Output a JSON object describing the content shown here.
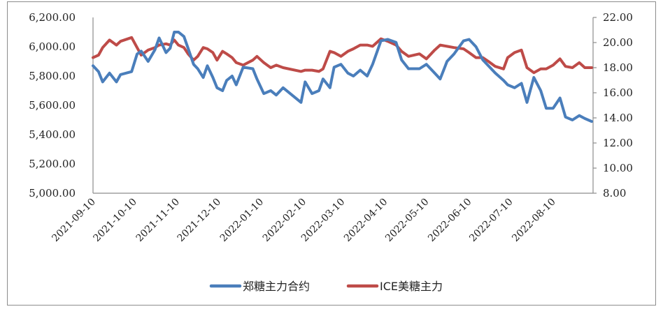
{
  "chart_data": {
    "type": "line",
    "title": "",
    "xlabel": "",
    "ylabel": "",
    "y2label": "",
    "legend_position": "bottom",
    "grid": false,
    "x_ticks": [
      "2021-09-10",
      "2021-10-10",
      "2021-11-10",
      "2021-12-10",
      "2022-01-10",
      "2022-02-10",
      "2022-03-10",
      "2022-04-10",
      "2022-05-10",
      "2022-06-10",
      "2022-07-10",
      "2022-08-10"
    ],
    "y_left": {
      "ylim": [
        5000,
        6200
      ],
      "ticks": [
        "5,000.00",
        "5,200.00",
        "5,400.00",
        "5,600.00",
        "5,800.00",
        "6,000.00",
        "6,200.00"
      ]
    },
    "y_right": {
      "ylim": [
        8,
        22
      ],
      "ticks": [
        "8.00",
        "10.00",
        "12.00",
        "14.00",
        "16.00",
        "18.00",
        "20.00",
        "22.00"
      ]
    },
    "series": [
      {
        "name": "郑糖主力合约",
        "axis": "left",
        "color": "#4a7ebb",
        "x": [
          "2021-09-10",
          "2021-09-14",
          "2021-09-17",
          "2021-09-22",
          "2021-09-27",
          "2021-09-30",
          "2021-10-08",
          "2021-10-12",
          "2021-10-15",
          "2021-10-20",
          "2021-10-25",
          "2021-10-28",
          "2021-11-02",
          "2021-11-05",
          "2021-11-08",
          "2021-11-11",
          "2021-11-15",
          "2021-11-18",
          "2021-11-22",
          "2021-11-25",
          "2021-11-29",
          "2021-12-02",
          "2021-12-06",
          "2021-12-09",
          "2021-12-13",
          "2021-12-16",
          "2021-12-20",
          "2021-12-23",
          "2021-12-28",
          "2022-01-04",
          "2022-01-07",
          "2022-01-12",
          "2022-01-17",
          "2022-01-21",
          "2022-01-26",
          "2022-02-08",
          "2022-02-11",
          "2022-02-16",
          "2022-02-21",
          "2022-02-24",
          "2022-03-01",
          "2022-03-04",
          "2022-03-09",
          "2022-03-14",
          "2022-03-18",
          "2022-03-23",
          "2022-03-28",
          "2022-04-01",
          "2022-04-07",
          "2022-04-12",
          "2022-04-18",
          "2022-04-22",
          "2022-04-27",
          "2022-05-05",
          "2022-05-10",
          "2022-05-16",
          "2022-05-20",
          "2022-05-25",
          "2022-05-30",
          "2022-06-06",
          "2022-06-10",
          "2022-06-15",
          "2022-06-20",
          "2022-06-24",
          "2022-06-29",
          "2022-07-05",
          "2022-07-08",
          "2022-07-13",
          "2022-07-18",
          "2022-07-22",
          "2022-07-27",
          "2022-08-01",
          "2022-08-05",
          "2022-08-10",
          "2022-08-15",
          "2022-08-19",
          "2022-08-24",
          "2022-08-29",
          "2022-09-02",
          "2022-09-07"
        ],
        "values": [
          5870,
          5830,
          5760,
          5820,
          5760,
          5810,
          5830,
          5950,
          5970,
          5900,
          5980,
          6060,
          5960,
          5990,
          6100,
          6100,
          6070,
          5990,
          5880,
          5850,
          5790,
          5870,
          5790,
          5720,
          5700,
          5770,
          5800,
          5740,
          5860,
          5850,
          5780,
          5680,
          5700,
          5670,
          5720,
          5620,
          5760,
          5680,
          5700,
          5780,
          5720,
          5860,
          5880,
          5820,
          5800,
          5840,
          5800,
          5880,
          6040,
          6050,
          6030,
          5910,
          5850,
          5850,
          5880,
          5820,
          5780,
          5900,
          5950,
          6040,
          6050,
          6000,
          5910,
          5870,
          5820,
          5770,
          5740,
          5720,
          5750,
          5620,
          5790,
          5700,
          5580,
          5580,
          5650,
          5520,
          5500,
          5530,
          5510,
          5490
        ],
        "values_note": "approximate readings from pixel positions"
      },
      {
        "name": "ICE美糖主力",
        "axis": "right",
        "color": "#be4b48",
        "x": [
          "2021-09-10",
          "2021-09-14",
          "2021-09-17",
          "2021-09-22",
          "2021-09-27",
          "2021-09-30",
          "2021-10-08",
          "2021-10-12",
          "2021-10-15",
          "2021-10-20",
          "2021-10-25",
          "2021-10-28",
          "2021-11-02",
          "2021-11-05",
          "2021-11-08",
          "2021-11-11",
          "2021-11-15",
          "2021-11-18",
          "2021-11-22",
          "2021-11-25",
          "2021-11-29",
          "2021-12-02",
          "2021-12-06",
          "2021-12-09",
          "2021-12-13",
          "2021-12-16",
          "2021-12-20",
          "2021-12-23",
          "2021-12-28",
          "2022-01-04",
          "2022-01-07",
          "2022-01-12",
          "2022-01-17",
          "2022-01-21",
          "2022-01-26",
          "2022-02-08",
          "2022-02-11",
          "2022-02-16",
          "2022-02-21",
          "2022-02-24",
          "2022-03-01",
          "2022-03-04",
          "2022-03-09",
          "2022-03-14",
          "2022-03-18",
          "2022-03-23",
          "2022-03-28",
          "2022-04-01",
          "2022-04-07",
          "2022-04-12",
          "2022-04-18",
          "2022-04-22",
          "2022-04-27",
          "2022-05-05",
          "2022-05-10",
          "2022-05-16",
          "2022-05-20",
          "2022-05-25",
          "2022-05-30",
          "2022-06-06",
          "2022-06-10",
          "2022-06-15",
          "2022-06-20",
          "2022-06-24",
          "2022-06-29",
          "2022-07-05",
          "2022-07-08",
          "2022-07-13",
          "2022-07-18",
          "2022-07-22",
          "2022-07-27",
          "2022-08-01",
          "2022-08-05",
          "2022-08-10",
          "2022-08-15",
          "2022-08-19",
          "2022-08-24",
          "2022-08-29",
          "2022-09-02",
          "2022-09-07"
        ],
        "values": [
          18.8,
          19.0,
          19.6,
          20.2,
          19.8,
          20.1,
          20.4,
          19.6,
          19.0,
          19.4,
          19.6,
          19.8,
          19.9,
          19.8,
          20.2,
          19.8,
          19.6,
          19.1,
          18.6,
          18.9,
          19.6,
          19.5,
          19.2,
          18.6,
          19.3,
          19.1,
          18.8,
          18.4,
          18.2,
          18.6,
          18.9,
          18.4,
          18.0,
          18.2,
          18.0,
          17.7,
          17.8,
          17.8,
          17.7,
          17.9,
          19.3,
          19.2,
          18.9,
          19.3,
          19.5,
          19.8,
          19.8,
          19.7,
          20.3,
          20.1,
          19.8,
          19.3,
          18.9,
          19.1,
          18.7,
          19.4,
          19.8,
          19.7,
          19.6,
          19.5,
          19.2,
          18.8,
          18.8,
          18.5,
          18.1,
          17.9,
          18.8,
          19.2,
          19.4,
          18.0,
          17.6,
          17.9,
          17.9,
          18.2,
          18.7,
          18.1,
          18.0,
          18.4,
          18.0,
          18.0
        ],
        "values_note": "approximate readings from pixel positions"
      }
    ]
  },
  "legend": {
    "items": [
      {
        "label": "郑糖主力合约",
        "color": "#4a7ebb"
      },
      {
        "label": "ICE美糖主力",
        "color": "#be4b48"
      }
    ]
  }
}
